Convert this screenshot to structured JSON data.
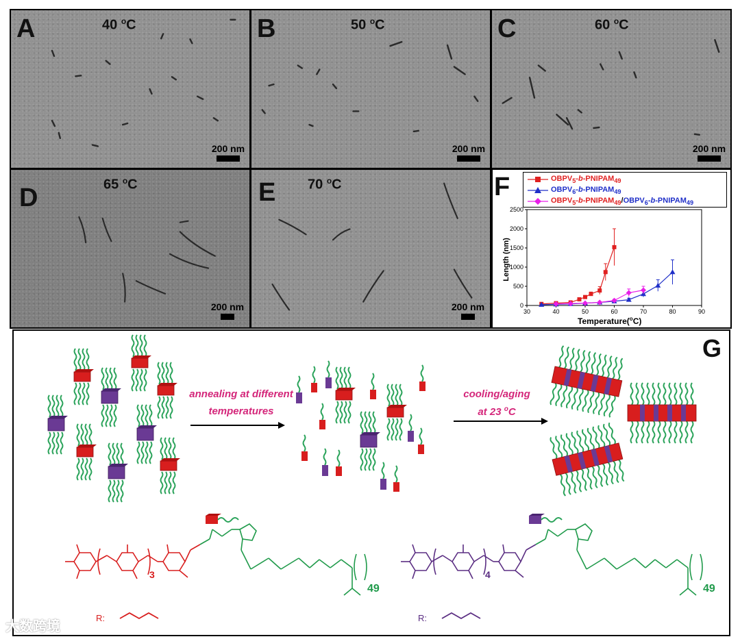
{
  "panels": [
    {
      "id": "A",
      "label": "A",
      "temp_value": "40 ",
      "temp_unit": "o",
      "temp_suffix": "C",
      "scale": "200 nm"
    },
    {
      "id": "B",
      "label": "B",
      "temp_value": "50 ",
      "temp_unit": "o",
      "temp_suffix": "C",
      "scale": "200 nm"
    },
    {
      "id": "C",
      "label": "C",
      "temp_value": "60 ",
      "temp_unit": "o",
      "temp_suffix": "C",
      "scale": "200 nm"
    },
    {
      "id": "D",
      "label": "D",
      "temp_value": "65 ",
      "temp_unit": "o",
      "temp_suffix": "C",
      "scale": "200 nm"
    },
    {
      "id": "E",
      "label": "E",
      "temp_value": "70 ",
      "temp_unit": "o",
      "temp_suffix": "C",
      "scale": "200 nm"
    }
  ],
  "panelF": {
    "label": "F"
  },
  "panelG": {
    "label": "G",
    "step1_line1": "annealing at different",
    "step1_line2": "temperatures",
    "step2_line1": "cooling/aging",
    "step2_line2_prefix": "at 23 ",
    "step2_line2_sup": "o",
    "step2_line2_suffix": "C",
    "r_label": "R:",
    "n_red": "3",
    "n_purple": "4",
    "dp": "49"
  },
  "watermark": "大数跨境",
  "colors": {
    "red": "#e02020",
    "blue": "#1f2fc8",
    "magenta": "#e81ee8",
    "green": "#1f9a4a",
    "purple": "#5a2d82",
    "green_chain": "#2aa35a"
  },
  "chart_data": {
    "type": "line",
    "xlabel": "Temperature(oC)",
    "ylabel": "Length (nm)",
    "xlim": [
      30,
      90
    ],
    "ylim": [
      0,
      2500
    ],
    "xticks": [
      30,
      40,
      50,
      60,
      70,
      80,
      90
    ],
    "yticks": [
      0,
      500,
      1000,
      1500,
      2000,
      2500
    ],
    "legend_position": "top",
    "series": [
      {
        "name": "OBPV5-b-PNIPAM49",
        "marker": "square",
        "color": "#e02020",
        "x": [
          35,
          40,
          45,
          48,
          50,
          52,
          55,
          57,
          60
        ],
        "y": [
          40,
          60,
          80,
          160,
          220,
          300,
          390,
          870,
          1520
        ],
        "err": [
          10,
          10,
          15,
          20,
          30,
          50,
          100,
          220,
          480
        ]
      },
      {
        "name": "OBPV6-b-PNIPAM49",
        "marker": "triangle",
        "color": "#1f2fc8",
        "x": [
          35,
          40,
          45,
          50,
          55,
          60,
          65,
          70,
          75,
          80
        ],
        "y": [
          20,
          30,
          40,
          60,
          80,
          110,
          150,
          300,
          520,
          870
        ],
        "err": [
          5,
          5,
          8,
          10,
          15,
          20,
          40,
          80,
          150,
          320
        ]
      },
      {
        "name": "OBPV5-b-PNIPAM49/OBPV6-b-PNIPAM49",
        "marker": "diamond",
        "color": "#e81ee8",
        "x": [
          40,
          45,
          50,
          55,
          60,
          65,
          70
        ],
        "y": [
          40,
          50,
          60,
          80,
          130,
          330,
          400
        ],
        "err": [
          8,
          10,
          10,
          15,
          30,
          100,
          100
        ]
      }
    ]
  }
}
